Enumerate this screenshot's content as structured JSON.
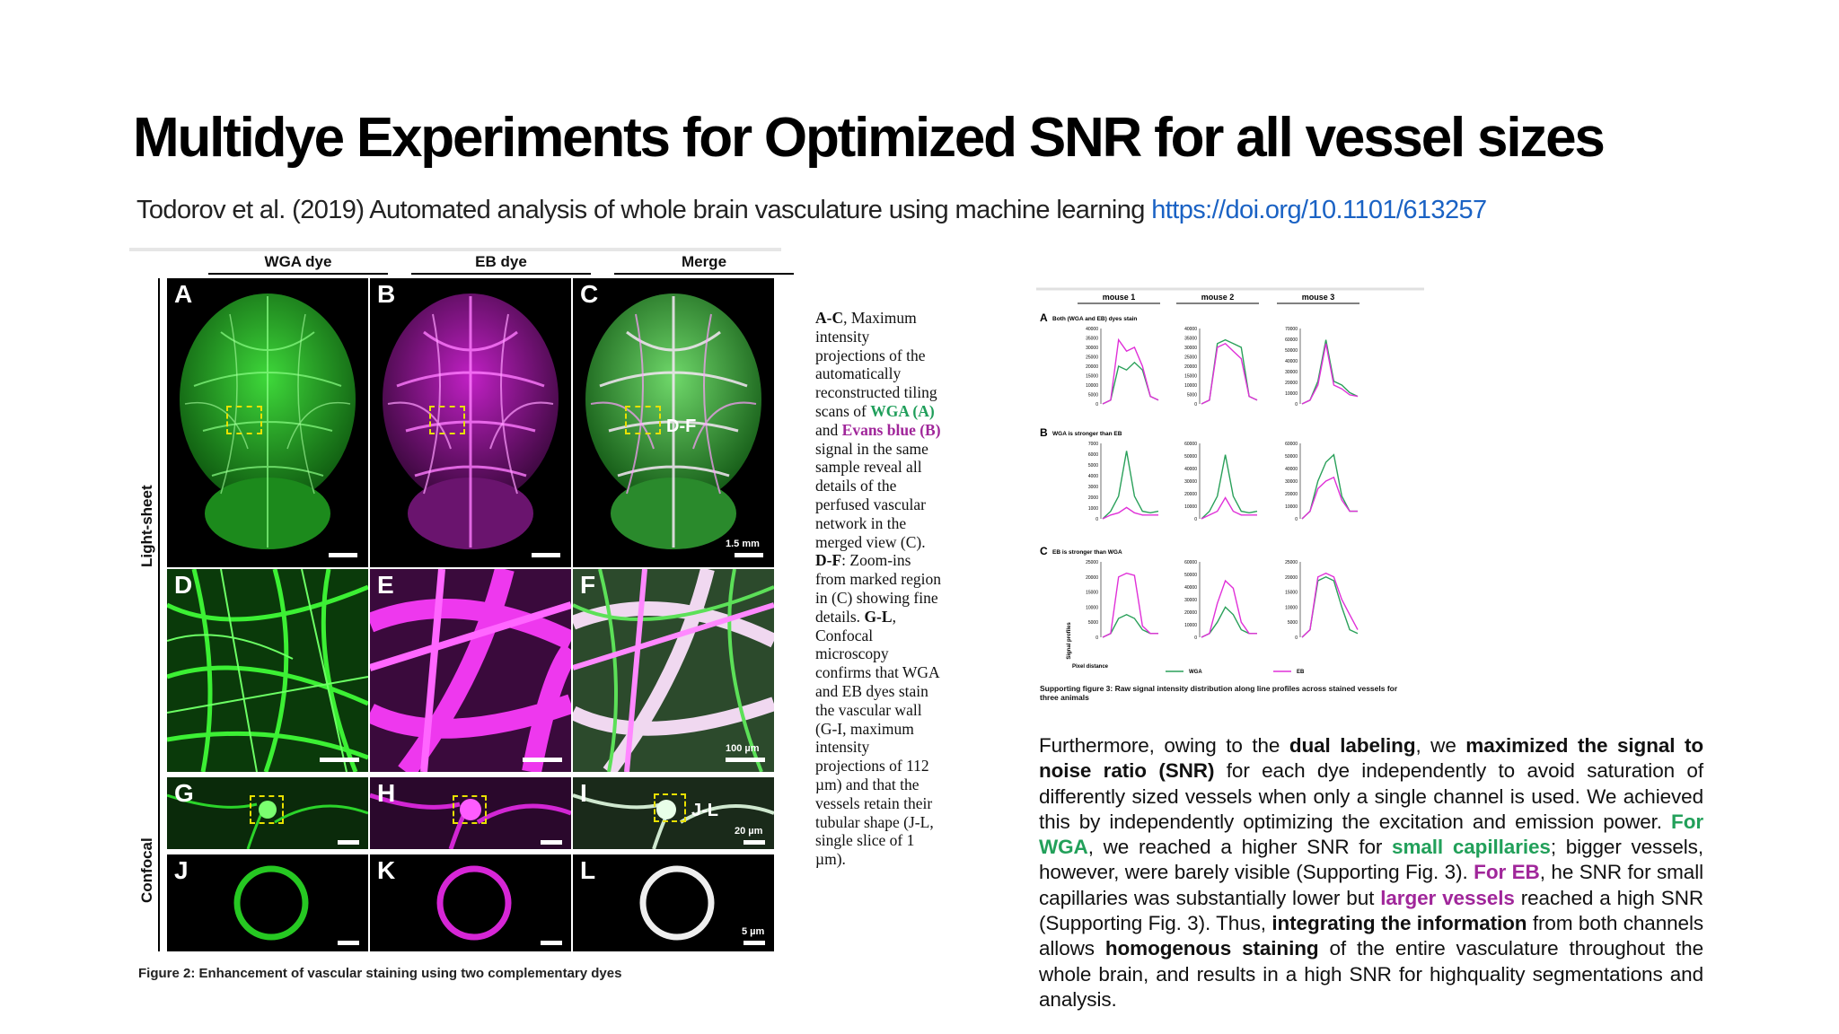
{
  "title": "Multidye Experiments for Optimized SNR for all vessel sizes",
  "citation": {
    "text": "Todorov et al. (2019) Automated analysis of whole brain vasculature using machine learning",
    "doi": "https://doi.org/10.1101/613257"
  },
  "figure2": {
    "columns": [
      "WGA dye",
      "EB dye",
      "Merge"
    ],
    "row_labels": [
      "Light-sheet",
      "Confocal"
    ],
    "panels": [
      "A",
      "B",
      "C",
      "D",
      "E",
      "F",
      "G",
      "H",
      "I",
      "J",
      "K",
      "L"
    ],
    "roi_labels": [
      "D-F",
      "J-L"
    ],
    "scale_labels": [
      "1.5 mm",
      "100 µm",
      "20 µm",
      "5 µm"
    ],
    "caption": "Figure 2: Enhancement of vascular staining using two complementary dyes",
    "colors": {
      "wga": "#22c81e",
      "eb": "#e020e0"
    }
  },
  "legend": {
    "p1": "A-C",
    "p2": ", Maximum intensity projections of the automatically reconstructed tiling scans of ",
    "p3": "WGA (A)",
    "p4": " and ",
    "p5": "Evans blue (B)",
    "p6": " signal in the same sample reveal all details of the perfused vascular network in the merged view (C). ",
    "p7": "D-F",
    "p8": ": Zoom-ins from marked region in (C) showing fine details. ",
    "p9": "G-L",
    "p10": ", Confocal microscopy confirms that WGA and EB dyes stain the vascular wall (G-I, maximum intensity projections of 112 µm) and that the vessels retain their tubular shape (J-L, single slice of 1 µm)."
  },
  "supp_fig": {
    "columns": [
      "mouse 1",
      "mouse 2",
      "mouse 3"
    ],
    "rows": [
      {
        "letter": "A",
        "label": "Both (WGA and EB) dyes stain"
      },
      {
        "letter": "B",
        "label": "WGA is stronger than EB"
      },
      {
        "letter": "C",
        "label": "EB is stronger than WGA"
      }
    ],
    "ylabel": "Signal profiles",
    "xlabel": "Pixel distance",
    "legend": [
      "WGA",
      "EB"
    ],
    "colors": {
      "wga": "#2aa05a",
      "eb": "#e030d8"
    },
    "yticks": [
      [
        [
          "40000",
          "35000",
          "30000",
          "25000",
          "20000",
          "15000",
          "10000",
          "5000",
          "0"
        ],
        [
          "40000",
          "35000",
          "30000",
          "25000",
          "20000",
          "15000",
          "10000",
          "5000",
          "0"
        ],
        [
          "70000",
          "60000",
          "50000",
          "40000",
          "30000",
          "20000",
          "10000",
          "0"
        ]
      ],
      [
        [
          "7000",
          "6000",
          "5000",
          "4000",
          "3000",
          "2000",
          "1000",
          "0"
        ],
        [
          "60000",
          "50000",
          "40000",
          "30000",
          "20000",
          "10000",
          "0"
        ],
        [
          "60000",
          "50000",
          "40000",
          "30000",
          "20000",
          "10000",
          "0"
        ]
      ],
      [
        [
          "25000",
          "20000",
          "15000",
          "10000",
          "5000",
          "0"
        ],
        [
          "60000",
          "50000",
          "40000",
          "30000",
          "20000",
          "10000",
          "0"
        ],
        [
          "25000",
          "20000",
          "15000",
          "10000",
          "5000",
          "0"
        ]
      ]
    ],
    "caption": "Supporting figure 3: Raw signal intensity distribution along line profiles across stained vessels for three animals"
  },
  "body": {
    "t1": "Furthermore, owing to the ",
    "t2": "dual labeling",
    "t3": ", we ",
    "t4": "maximized the signal to noise ratio (SNR)",
    "t5": " for each dye independently to avoid saturation of differently sized vessels when only a single channel is used. We achieved this by independently optimizing the excitation and emission power. ",
    "t6": "For WGA",
    "t7": ", we reached a higher SNR for ",
    "t8": "small capillaries",
    "t9": "; bigger vessels, however, were barely visible (Supporting Fig. 3). ",
    "t10": "For EB",
    "t11": ", he SNR for small capillaries was substantially lower but ",
    "t12": "larger vessels",
    "t13": " reached a high SNR (Supporting Fig. 3). Thus, ",
    "t14": "integrating the information",
    "t15": " from both channels allows ",
    "t16": "homogenous staining",
    "t17": " of the entire vasculature throughout the whole brain, and results in a high SNR for highquality segmentations and analysis."
  }
}
